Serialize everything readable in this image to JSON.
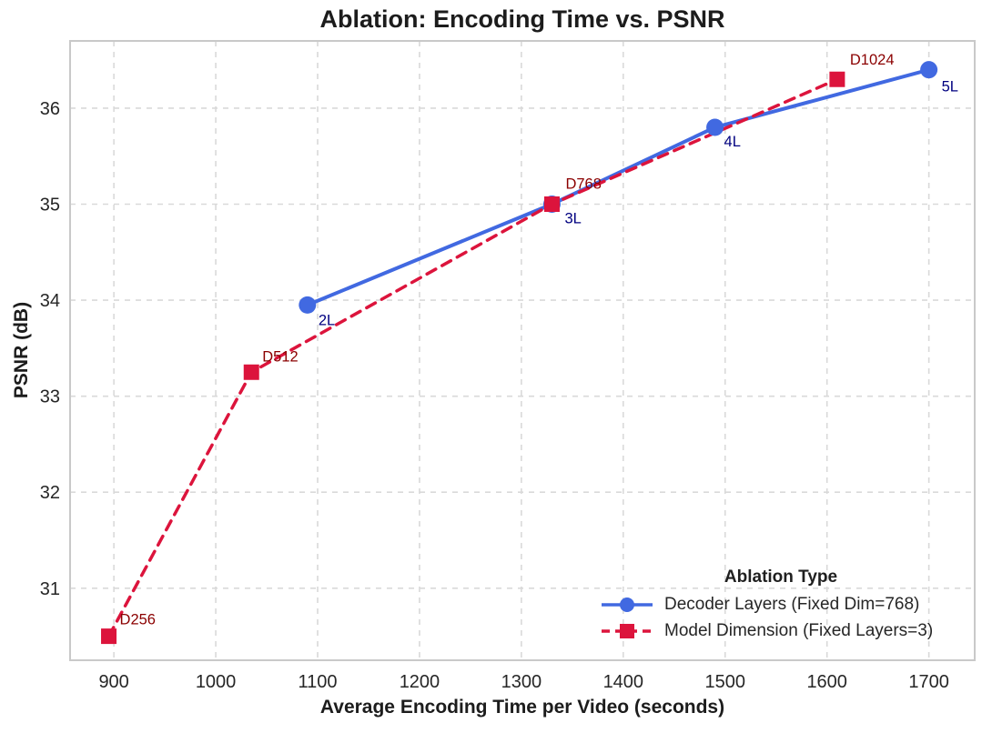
{
  "chart_data": {
    "type": "line",
    "title": "Ablation: Encoding Time vs. PSNR",
    "xlabel": "Average Encoding Time per Video (seconds)",
    "ylabel": "PSNR (dB)",
    "xlim": [
      857,
      1745
    ],
    "ylim": [
      30.25,
      36.7
    ],
    "x_ticks": [
      900,
      1000,
      1100,
      1200,
      1300,
      1400,
      1500,
      1600,
      1700
    ],
    "y_ticks": [
      31,
      32,
      33,
      34,
      35,
      36
    ],
    "grid": "dashed-both",
    "grid_color": "#d9d9d9",
    "spine_color": "#c9c9c9",
    "tick_label_color": "#262626",
    "legend": {
      "title": "Ablation Type",
      "position": "lower-right"
    },
    "series": [
      {
        "name": "Decoder Layers (Fixed Dim=768)",
        "color": "#4169E1",
        "line_style": "solid",
        "marker": "circle",
        "label_color": "#000080",
        "points": [
          {
            "x": 1090,
            "y": 33.95,
            "label": "2L",
            "dx": 12,
            "dy": 22
          },
          {
            "x": 1330,
            "y": 35.0,
            "label": "3L",
            "dx": 14,
            "dy": 21
          },
          {
            "x": 1490,
            "y": 35.8,
            "label": "4L",
            "dx": 10,
            "dy": 21
          },
          {
            "x": 1700,
            "y": 36.4,
            "label": "5L",
            "dx": 14,
            "dy": 24
          }
        ]
      },
      {
        "name": "Model Dimension (Fixed Layers=3)",
        "color": "#DC143C",
        "line_style": "dashed",
        "marker": "square",
        "label_color": "#8B0000",
        "points": [
          {
            "x": 895,
            "y": 30.5,
            "label": "D256",
            "dx": 12,
            "dy": -13
          },
          {
            "x": 1035,
            "y": 33.25,
            "label": "D512",
            "dx": 12,
            "dy": -12
          },
          {
            "x": 1330,
            "y": 35.0,
            "label": "D768",
            "dx": 15,
            "dy": -17
          },
          {
            "x": 1610,
            "y": 36.3,
            "label": "D1024",
            "dx": 14,
            "dy": -16
          }
        ]
      }
    ]
  }
}
